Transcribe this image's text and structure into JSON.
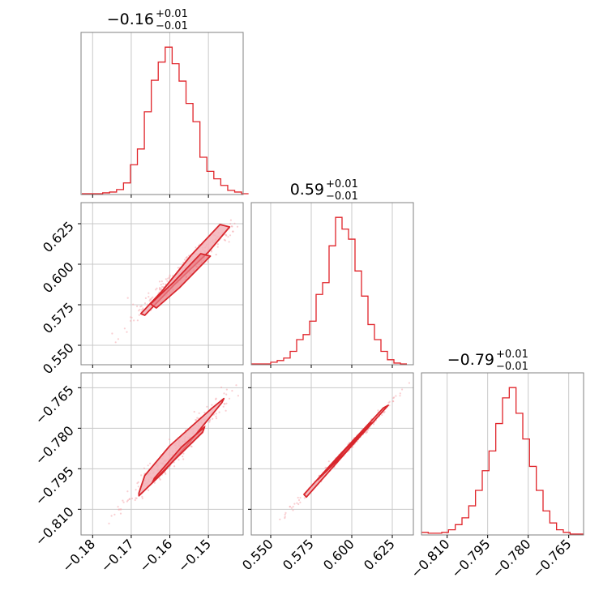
{
  "figure": {
    "type": "corner_plot",
    "color": "#e0242a",
    "fill_color": "#f3b2b8"
  },
  "chart_data": [
    {
      "type": "histogram",
      "panel": "diag-0",
      "title_median": "−0.16",
      "title_plus": "+0.01",
      "title_minus": "−0.01",
      "xlim": [
        -0.183,
        -0.141
      ],
      "bins": [
        -0.1828,
        -0.181,
        -0.1792,
        -0.1774,
        -0.1756,
        -0.1738,
        -0.172,
        -0.1702,
        -0.1684,
        -0.1666,
        -0.1648,
        -0.163,
        -0.1612,
        -0.1594,
        -0.1576,
        -0.1558,
        -0.154,
        -0.1522,
        -0.1504,
        -0.1486,
        -0.1468,
        -0.145,
        -0.1432,
        -0.1414
      ],
      "counts": [
        1,
        1,
        1,
        2,
        3,
        6,
        14,
        36,
        55,
        100,
        138,
        160,
        178,
        158,
        137,
        110,
        88,
        45,
        28,
        19,
        11,
        5,
        3,
        1
      ],
      "ticks": [
        -0.18,
        -0.17,
        -0.16,
        -0.15
      ],
      "ticklabels": [
        "−0.18",
        "−0.17",
        "−0.16",
        "−0.15"
      ]
    },
    {
      "type": "histogram",
      "panel": "diag-1",
      "title_median": "0.59",
      "title_plus": "+0.01",
      "title_minus": "−0.01",
      "xlim": [
        0.538,
        0.638
      ],
      "bins": [
        0.538,
        0.542,
        0.546,
        0.55,
        0.554,
        0.558,
        0.562,
        0.566,
        0.57,
        0.574,
        0.578,
        0.582,
        0.586,
        0.59,
        0.594,
        0.598,
        0.602,
        0.606,
        0.61,
        0.614,
        0.618,
        0.622,
        0.626,
        0.63
      ],
      "counts": [
        1,
        1,
        1,
        3,
        5,
        8,
        16,
        30,
        36,
        52,
        84,
        98,
        142,
        176,
        162,
        150,
        112,
        82,
        48,
        30,
        16,
        6,
        2,
        1
      ],
      "ticks": [
        0.55,
        0.575,
        0.6,
        0.625
      ],
      "ticklabels": [
        "0.550",
        "0.575",
        "0.600",
        "0.625"
      ]
    },
    {
      "type": "histogram",
      "panel": "diag-2",
      "title_median": "−0.79",
      "title_plus": "+0.01",
      "title_minus": "−0.01",
      "xlim": [
        -0.8195,
        -0.7595
      ],
      "bins": [
        -0.8195,
        -0.817,
        -0.8145,
        -0.812,
        -0.8095,
        -0.807,
        -0.8045,
        -0.802,
        -0.7995,
        -0.797,
        -0.7945,
        -0.792,
        -0.7895,
        -0.787,
        -0.7845,
        -0.782,
        -0.7795,
        -0.777,
        -0.7745,
        -0.772,
        -0.7695,
        -0.767,
        -0.7645,
        -0.762
      ],
      "counts": [
        3,
        2,
        2,
        3,
        6,
        12,
        20,
        34,
        52,
        75,
        98,
        130,
        160,
        172,
        142,
        112,
        80,
        52,
        28,
        14,
        6,
        3,
        1,
        1
      ],
      "ticks": [
        -0.81,
        -0.795,
        -0.78,
        -0.765
      ],
      "ticklabels": [
        "−0.810",
        "−0.795",
        "−0.780",
        "−0.765"
      ]
    },
    {
      "type": "scatter",
      "panel": "pair-1-0",
      "xlim": [
        -0.183,
        -0.141
      ],
      "ylim": [
        0.538,
        0.638
      ],
      "density_regions": [
        {
          "level": "outer",
          "points": [
            [
              -0.1675,
              0.5695
            ],
            [
              -0.162,
              0.5835
            ],
            [
              -0.1545,
              0.6055
            ],
            [
              -0.147,
              0.6245
            ],
            [
              -0.1445,
              0.623
            ],
            [
              -0.15,
              0.6075
            ],
            [
              -0.159,
              0.587
            ],
            [
              -0.1665,
              0.5685
            ]
          ]
        },
        {
          "level": "inner",
          "points": [
            [
              -0.165,
              0.5755
            ],
            [
              -0.159,
              0.589
            ],
            [
              -0.152,
              0.6065
            ],
            [
              -0.1495,
              0.605
            ],
            [
              -0.1575,
              0.5855
            ],
            [
              -0.1635,
              0.573
            ]
          ]
        }
      ],
      "yticks": [
        0.55,
        0.575,
        0.6,
        0.625
      ],
      "yticklabels": [
        "0.550",
        "0.575",
        "0.600",
        "0.625"
      ]
    },
    {
      "type": "scatter",
      "panel": "pair-2-0",
      "xlim": [
        -0.183,
        -0.141
      ],
      "ylim": [
        -0.8195,
        -0.7595
      ],
      "density_regions": [
        {
          "level": "outer",
          "points": [
            [
              -0.168,
              -0.804
            ],
            [
              -0.1665,
              -0.7975
            ],
            [
              -0.16,
              -0.7865
            ],
            [
              -0.149,
              -0.7725
            ],
            [
              -0.146,
              -0.769
            ],
            [
              -0.1465,
              -0.7705
            ],
            [
              -0.1545,
              -0.7845
            ],
            [
              -0.1615,
              -0.796
            ],
            [
              -0.168,
              -0.805
            ]
          ]
        },
        {
          "level": "inner",
          "points": [
            [
              -0.164,
              -0.7985
            ],
            [
              -0.157,
              -0.787
            ],
            [
              -0.151,
              -0.7795
            ],
            [
              -0.1515,
              -0.7815
            ],
            [
              -0.159,
              -0.792
            ],
            [
              -0.1645,
              -0.8
            ]
          ]
        }
      ],
      "yticks": [
        -0.81,
        -0.795,
        -0.78,
        -0.765
      ],
      "yticklabels": [
        "−0.810",
        "−0.795",
        "−0.780",
        "−0.765"
      ]
    },
    {
      "type": "scatter",
      "panel": "pair-2-1",
      "xlim": [
        0.538,
        0.638
      ],
      "ylim": [
        -0.8195,
        -0.7595
      ],
      "density_regions": [
        {
          "level": "outer",
          "points": [
            [
              0.5705,
              -0.8045
            ],
            [
              0.59,
              -0.7915
            ],
            [
              0.6195,
              -0.7725
            ],
            [
              0.6225,
              -0.7715
            ],
            [
              0.603,
              -0.7845
            ],
            [
              0.572,
              -0.8055
            ]
          ]
        },
        {
          "level": "inner",
          "points": [
            [
              0.579,
              -0.799
            ],
            [
              0.596,
              -0.788
            ],
            [
              0.612,
              -0.778
            ],
            [
              0.596,
              -0.789
            ]
          ]
        }
      ]
    }
  ]
}
